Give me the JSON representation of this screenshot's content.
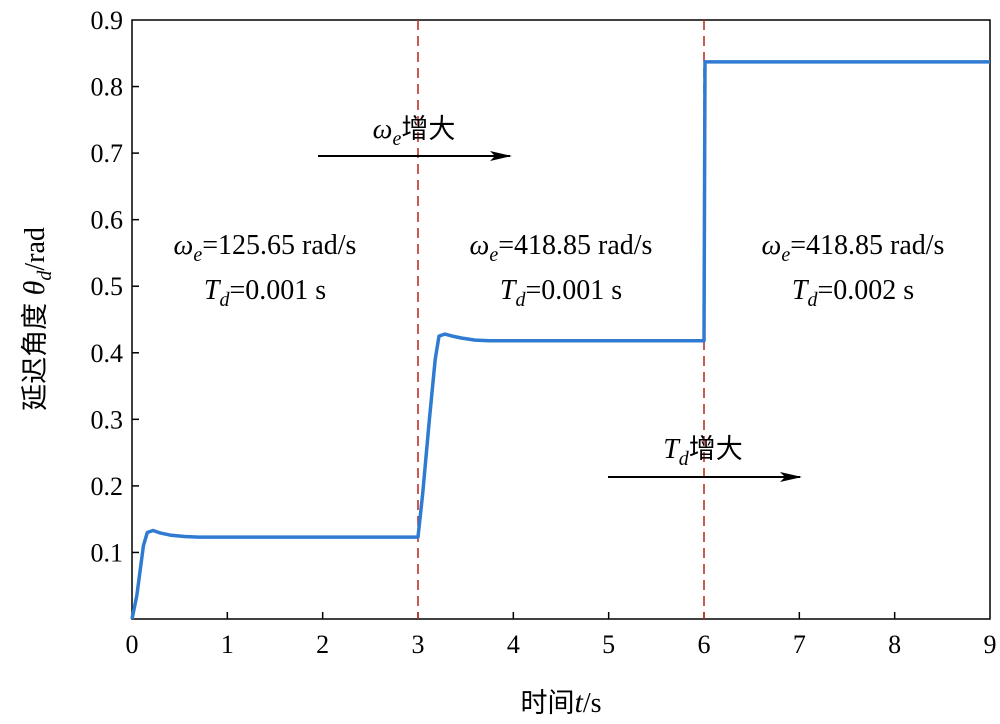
{
  "chart_data": {
    "type": "line",
    "title": "",
    "xlabel": "时间t/s",
    "ylabel": "延迟角度θd/rad",
    "xlim": [
      0,
      9
    ],
    "ylim": [
      0,
      0.9
    ],
    "x_ticks": [
      "0",
      "1",
      "2",
      "3",
      "4",
      "5",
      "6",
      "7",
      "8",
      "9"
    ],
    "y_ticks": [
      "0.1",
      "0.2",
      "0.3",
      "0.4",
      "0.5",
      "0.6",
      "0.7",
      "0.8",
      "0.9"
    ],
    "grid": false,
    "line_color": "#2f7bd1",
    "divider_color": "#c0302a",
    "dividers_x": [
      3,
      6
    ],
    "series": [
      {
        "x": [
          0,
          0.05,
          0.12,
          0.16,
          0.22,
          0.3,
          0.4,
          0.55,
          0.7,
          1.0,
          2.0,
          2.98,
          3.0,
          3.05,
          3.12,
          3.18,
          3.22,
          3.28,
          3.36,
          3.46,
          3.6,
          3.75,
          4.0,
          5.0,
          5.99,
          6.0,
          6.01,
          9.0
        ],
        "y": [
          0,
          0.035,
          0.11,
          0.13,
          0.133,
          0.129,
          0.126,
          0.124,
          0.123,
          0.123,
          0.123,
          0.123,
          0.123,
          0.19,
          0.3,
          0.39,
          0.425,
          0.428,
          0.425,
          0.422,
          0.419,
          0.418,
          0.418,
          0.418,
          0.418,
          0.418,
          0.837,
          0.837
        ]
      }
    ],
    "annotations": [
      {
        "omega_prefix": "ω",
        "omega_sub": "e",
        "omega_value": "=125.65 rad/s",
        "td_prefix": "T",
        "td_sub": "d",
        "td_value": "=0.001 s"
      },
      {
        "omega_prefix": "ω",
        "omega_sub": "e",
        "omega_value": "=418.85 rad/s",
        "td_prefix": "T",
        "td_sub": "d",
        "td_value": "=0.001 s"
      },
      {
        "omega_prefix": "ω",
        "omega_sub": "e",
        "omega_value": "=418.85 rad/s",
        "td_prefix": "T",
        "td_sub": "d",
        "td_value": "=0.002 s"
      }
    ],
    "arrow_labels": [
      {
        "prefix": "ω",
        "sub": "e",
        "text": "增大"
      },
      {
        "prefix": "T",
        "sub": "d",
        "text": "增大"
      }
    ]
  }
}
